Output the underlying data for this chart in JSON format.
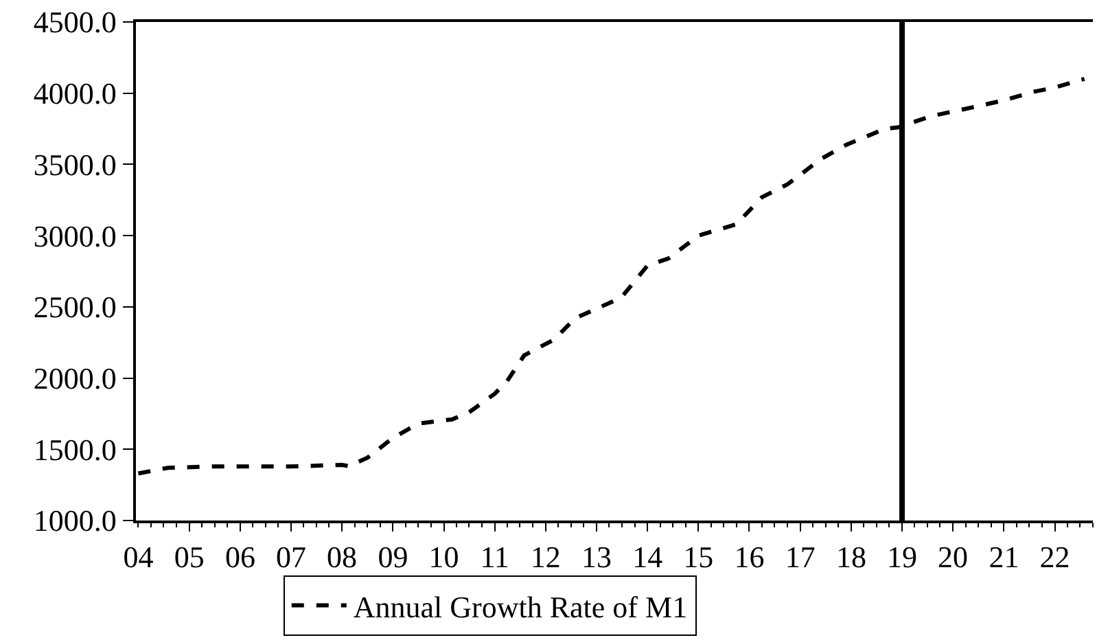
{
  "chart_data": {
    "type": "line",
    "x": [
      "2004-01",
      "2004-08",
      "2005-07",
      "2007-01",
      "2008-01",
      "2008-03",
      "2008-04",
      "2008-07",
      "2009-01",
      "2009-07",
      "2010-03",
      "2010-07",
      "2011-01",
      "2011-04",
      "2011-08",
      "2012-03",
      "2012-08",
      "2013-05",
      "2013-07",
      "2014-01",
      "2014-06",
      "2015-01",
      "2015-10",
      "2016-04",
      "2016-10",
      "2017-06",
      "2017-12",
      "2018-09",
      "2018-12",
      "2019-08",
      "2020-04",
      "2021-01",
      "2021-08",
      "2022-01",
      "2022-08"
    ],
    "series": [
      {
        "name": "Annual Growth Rate of M1",
        "color": "#000000",
        "line_style": "dashed",
        "values": [
          1330,
          1370,
          1380,
          1380,
          1390,
          1380,
          1400,
          1440,
          1580,
          1680,
          1710,
          1760,
          1890,
          1980,
          2160,
          2270,
          2420,
          2540,
          2570,
          2790,
          2840,
          3000,
          3080,
          3270,
          3360,
          3540,
          3640,
          3750,
          3760,
          3840,
          3890,
          3950,
          4010,
          4040,
          4100
        ]
      }
    ],
    "xlim": [
      "2003-12-15",
      "2022-10"
    ],
    "xticks": [
      {
        "value": "2004",
        "label": "04"
      },
      {
        "value": "2005",
        "label": "05"
      },
      {
        "value": "2006",
        "label": "06"
      },
      {
        "value": "2007",
        "label": "07"
      },
      {
        "value": "2008",
        "label": "08"
      },
      {
        "value": "2009",
        "label": "09"
      },
      {
        "value": "2010",
        "label": "10"
      },
      {
        "value": "2011",
        "label": "11"
      },
      {
        "value": "2012",
        "label": "12"
      },
      {
        "value": "2013",
        "label": "13"
      },
      {
        "value": "2014",
        "label": "14"
      },
      {
        "value": "2015",
        "label": "15"
      },
      {
        "value": "2016",
        "label": "16"
      },
      {
        "value": "2017",
        "label": "17"
      },
      {
        "value": "2018",
        "label": "18"
      },
      {
        "value": "2019",
        "label": "19"
      },
      {
        "value": "2020",
        "label": "20"
      },
      {
        "value": "2021",
        "label": "21"
      },
      {
        "value": "2022",
        "label": "22"
      }
    ],
    "ylim": [
      1000,
      4500
    ],
    "yticks": [
      {
        "value": 1000,
        "label": "1000.0"
      },
      {
        "value": 1500,
        "label": "1500.0"
      },
      {
        "value": 2000,
        "label": "2000.0"
      },
      {
        "value": 2500,
        "label": "2500.0"
      },
      {
        "value": 3000,
        "label": "3000.0"
      },
      {
        "value": 3500,
        "label": "3500.0"
      },
      {
        "value": 4000,
        "label": "4000.0"
      },
      {
        "value": 4500,
        "label": "4500.0"
      }
    ],
    "ref_lines": [
      {
        "axis": "x",
        "value": "2019-01",
        "color": "#000000"
      }
    ],
    "grid": false,
    "legend": "bottom",
    "marker": "none"
  }
}
